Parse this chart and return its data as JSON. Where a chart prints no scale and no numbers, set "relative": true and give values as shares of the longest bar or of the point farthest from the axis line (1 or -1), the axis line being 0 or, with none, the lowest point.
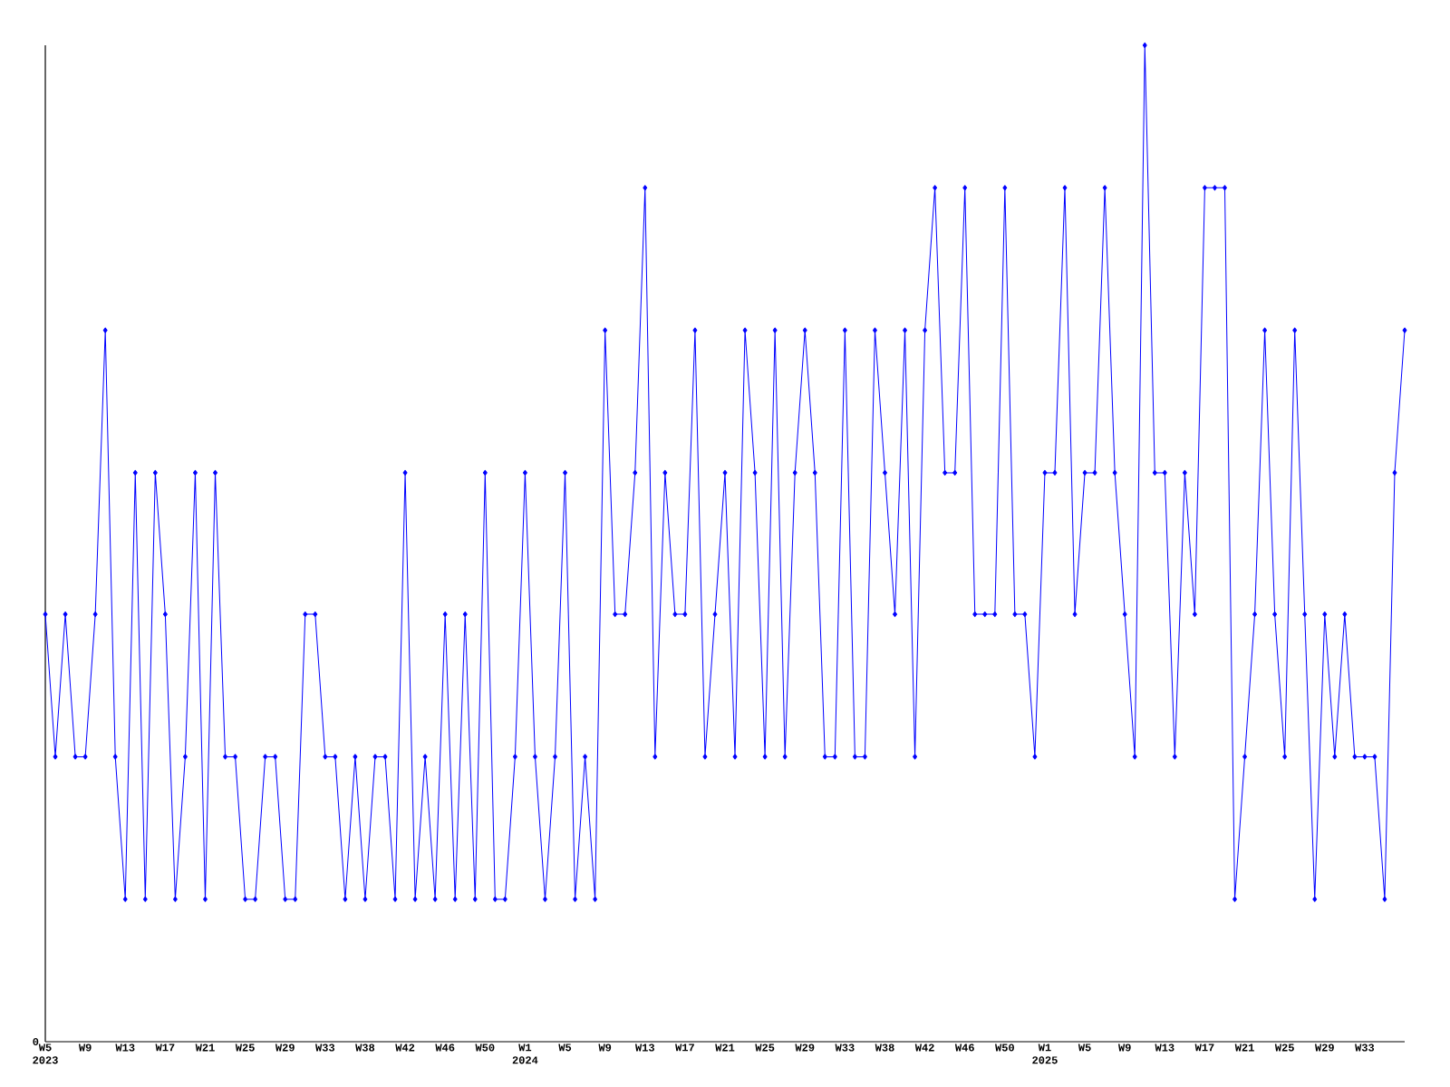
{
  "chart_data": {
    "type": "line",
    "relative": true,
    "color": "#0000ff",
    "marker": "diamond",
    "categories": [
      "W5 2023",
      null,
      null,
      null,
      "W9",
      null,
      null,
      null,
      "W13",
      null,
      null,
      null,
      "W17",
      null,
      null,
      null,
      "W21",
      null,
      null,
      null,
      "W25",
      null,
      null,
      null,
      "W29",
      null,
      null,
      null,
      "W33",
      null,
      null,
      null,
      "W38",
      null,
      null,
      null,
      "W42",
      null,
      null,
      null,
      "W46",
      null,
      null,
      null,
      "W50",
      null,
      null,
      null,
      "W1 2024",
      null,
      null,
      null,
      "W5",
      null,
      null,
      null,
      "W9",
      null,
      null,
      null,
      "W13",
      null,
      null,
      null,
      "W17",
      null,
      null,
      null,
      "W21",
      null,
      null,
      null,
      "W25",
      null,
      null,
      null,
      "W29",
      null,
      null,
      null,
      "W33",
      null,
      null,
      null,
      "W38",
      null,
      null,
      null,
      "W42",
      null,
      null,
      null,
      "W46",
      null,
      null,
      null,
      "W50",
      null,
      null,
      null,
      "W1 2025",
      null,
      null,
      null,
      "W5",
      null,
      null,
      null,
      "W9",
      null,
      null,
      null,
      "W13",
      null,
      null,
      null,
      "W17",
      null,
      null,
      null,
      "W21",
      null,
      null,
      null,
      "W25",
      null,
      null,
      null,
      "W29",
      null,
      null,
      null,
      "W33",
      null,
      null,
      null,
      null
    ],
    "values": [
      0.429,
      0.286,
      0.429,
      0.286,
      0.286,
      0.429,
      0.714,
      0.286,
      0.143,
      0.571,
      0.143,
      0.571,
      0.429,
      0.143,
      0.286,
      0.571,
      0.143,
      0.571,
      0.286,
      0.286,
      0.143,
      0.143,
      0.286,
      0.286,
      0.143,
      0.143,
      0.429,
      0.429,
      0.286,
      0.286,
      0.143,
      0.286,
      0.143,
      0.286,
      0.286,
      0.143,
      0.571,
      0.143,
      0.286,
      0.143,
      0.429,
      0.143,
      0.429,
      0.143,
      0.571,
      0.143,
      0.143,
      0.286,
      0.571,
      0.286,
      0.143,
      0.286,
      0.571,
      0.143,
      0.286,
      0.143,
      0.714,
      0.429,
      0.429,
      0.571,
      0.857,
      0.286,
      0.571,
      0.429,
      0.429,
      0.714,
      0.286,
      0.429,
      0.571,
      0.286,
      0.714,
      0.571,
      0.286,
      0.714,
      0.286,
      0.571,
      0.714,
      0.571,
      0.286,
      0.286,
      0.714,
      0.286,
      0.286,
      0.714,
      0.571,
      0.429,
      0.714,
      0.286,
      0.714,
      0.857,
      0.571,
      0.571,
      0.857,
      0.429,
      0.429,
      0.429,
      0.857,
      0.429,
      0.429,
      0.286,
      0.571,
      0.571,
      0.857,
      0.429,
      0.571,
      0.571,
      0.857,
      0.571,
      0.429,
      0.286,
      1,
      0.571,
      0.571,
      0.286,
      0.571,
      0.429,
      0.857,
      0.857,
      0.857,
      0.143,
      0.286,
      0.429,
      0.714,
      0.429,
      0.286,
      0.714,
      0.429,
      0.143,
      0.429,
      0.286,
      0.429,
      0.286,
      0.286,
      0.286,
      0.143,
      0.571,
      0.714
    ],
    "annotations": [
      "0"
    ]
  }
}
